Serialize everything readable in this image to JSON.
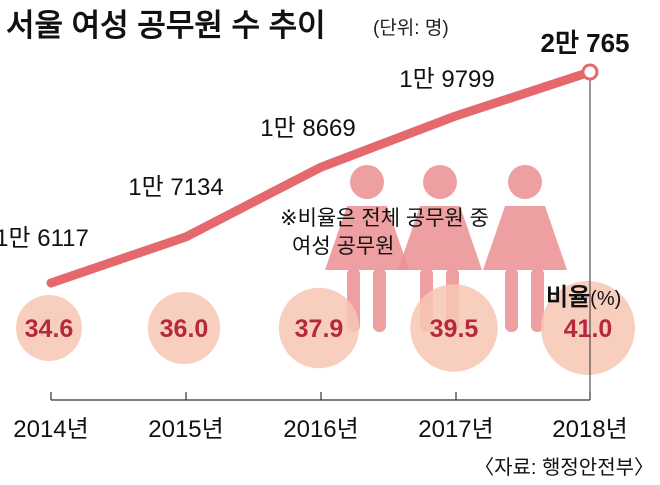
{
  "chart_data": {
    "type": "line",
    "title": "서울 여성 공무원 수 추이",
    "unit": "(단위: 명)",
    "categories": [
      "2014년",
      "2015년",
      "2016년",
      "2017년",
      "2018년"
    ],
    "series": [
      {
        "name": "여성 공무원 수",
        "values": [
          16117,
          17134,
          18669,
          19799,
          20765
        ],
        "labels": [
          "1만 6117",
          "1만 7134",
          "1만 8669",
          "1만 9799",
          "2만 765"
        ]
      },
      {
        "name": "비율(%)",
        "values": [
          34.6,
          36.0,
          37.9,
          39.5,
          41.0
        ],
        "labels": [
          "34.6",
          "36.0",
          "37.9",
          "39.5",
          "41.0"
        ]
      }
    ],
    "ylim": [
      16117,
      20765
    ],
    "note_lines": [
      "※비율은 전체 공무원 중",
      "여성 공무원"
    ],
    "rate_label": "비율",
    "rate_unit": "(%)",
    "source": "〈자료: 행정안전부〉",
    "colors": {
      "line": "#e5686c",
      "circle": "#f7c7b4",
      "rate_text": "#b5283e",
      "figure": "#ec8f92"
    }
  }
}
